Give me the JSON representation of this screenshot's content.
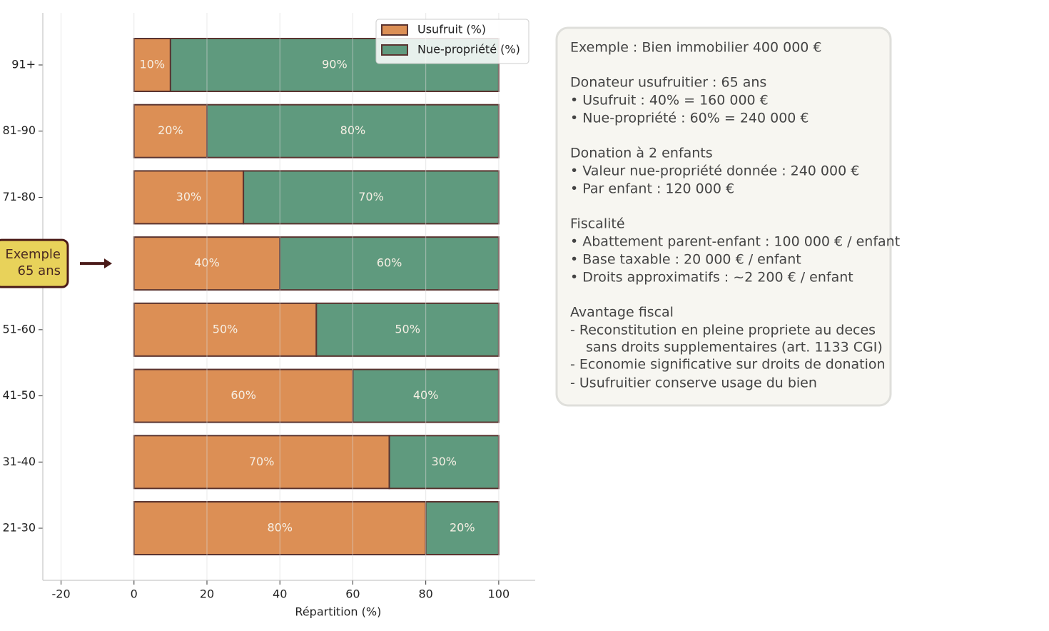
{
  "chart_data": {
    "type": "stacked-barh",
    "xlabel": "Répartition (%)",
    "categories": [
      "21-30",
      "31-40",
      "41-50",
      "51-60",
      null,
      "71-80",
      "81-90",
      "91+"
    ],
    "series": [
      {
        "name": "Usufruit (%)",
        "color": "#dc8f55",
        "values": [
          80,
          70,
          60,
          50,
          40,
          30,
          20,
          10
        ],
        "value_labels": [
          "80%",
          "70%",
          "60%",
          "50%",
          "40%",
          "30%",
          "20%",
          "10%"
        ]
      },
      {
        "name": "Nue-propriété (%)",
        "color": "#5f9a7e",
        "values": [
          20,
          30,
          40,
          50,
          60,
          70,
          80,
          90
        ],
        "value_labels": [
          "20%",
          "30%",
          "40%",
          "50%",
          "60%",
          "70%",
          "80%",
          "90%"
        ]
      }
    ],
    "edge_color": "#5a3430",
    "xlim": [
      -25,
      110
    ],
    "xticks": [
      -20,
      0,
      20,
      40,
      60,
      80,
      100
    ],
    "grid": true,
    "legend": "upper right",
    "annotation": [
      "Exemple",
      "65 ans"
    ],
    "text_box": [
      {
        "title": "Exemple : Bien immobilier 400 000 €",
        "lines": []
      },
      {
        "title": "Donateur usufruitier : 65 ans",
        "lines": [
          "• Usufruit : 40% = 160 000 €",
          "• Nue-propriété : 60% = 240 000 €"
        ]
      },
      {
        "title": "Donation à 2 enfants",
        "lines": [
          "• Valeur nue-propriété donnée : 240 000 €",
          "• Par enfant : 120 000 €"
        ]
      },
      {
        "title": "Fiscalité",
        "lines": [
          "• Abattement parent-enfant : 100 000 € / enfant",
          "• Base taxable : 20 000 € / enfant",
          "• Droits approximatifs : ~2 200 € / enfant"
        ]
      },
      {
        "title": "Avantage fiscal",
        "lines": [
          "- Reconstitution en pleine propriete au deces",
          "sans droits supplementaires (art. 1133 CGI)",
          "- Economie significative sur droits de donation",
          "- Usufruitier conserve usage du bien"
        ]
      }
    ]
  }
}
